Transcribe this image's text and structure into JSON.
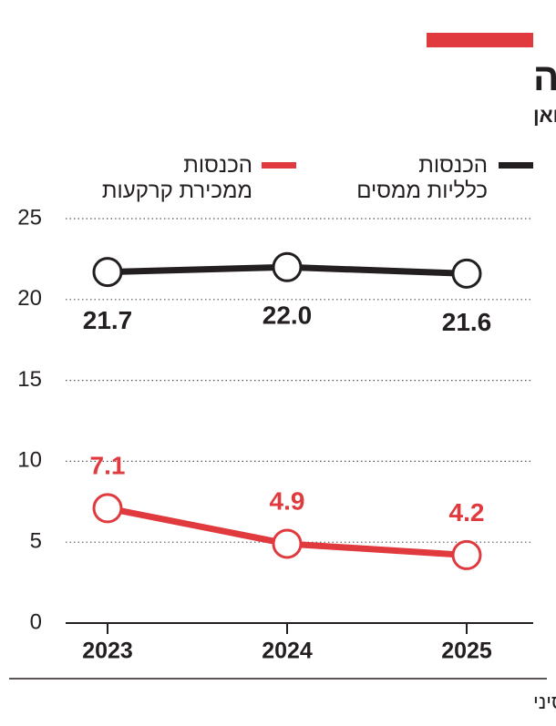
{
  "chart_data": {
    "type": "line",
    "title": "הכנסות הממשל הסיני בירידה",
    "subtitle": "הכנסות, בטריליוני יואן",
    "source": "מקור: פייננשל טיימס, משרד האוצר הסיני",
    "categories": [
      "2023",
      "2024",
      "2025"
    ],
    "series": [
      {
        "name": "הכנסות\nכלליות ממסים",
        "color": "#231f20",
        "values": [
          21.7,
          22.0,
          21.6
        ],
        "value_labels": [
          "21.7",
          "22.0",
          "21.6"
        ]
      },
      {
        "name": "הכנסות\nממכירת קרקעות",
        "color": "#e03a3e",
        "values": [
          7.1,
          4.9,
          4.2
        ],
        "value_labels": [
          "7.1",
          "4.9",
          "4.2"
        ]
      }
    ],
    "ylim": [
      0,
      25
    ],
    "yticks": [
      0,
      5,
      10,
      15,
      20,
      25
    ],
    "grid": true
  }
}
